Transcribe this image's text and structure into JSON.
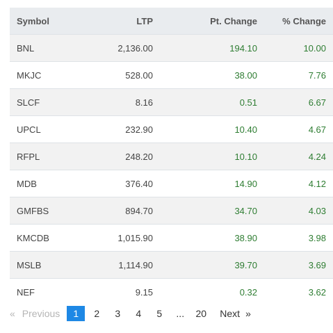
{
  "table": {
    "headers": {
      "symbol": "Symbol",
      "ltp": "LTP",
      "pt_change": "Pt. Change",
      "pct_change": "% Change"
    },
    "rows": [
      {
        "symbol": "BNL",
        "ltp": "2,136.00",
        "pt_change": "194.10",
        "pct_change": "10.00"
      },
      {
        "symbol": "MKJC",
        "ltp": "528.00",
        "pt_change": "38.00",
        "pct_change": "7.76"
      },
      {
        "symbol": "SLCF",
        "ltp": "8.16",
        "pt_change": "0.51",
        "pct_change": "6.67"
      },
      {
        "symbol": "UPCL",
        "ltp": "232.90",
        "pt_change": "10.40",
        "pct_change": "4.67"
      },
      {
        "symbol": "RFPL",
        "ltp": "248.20",
        "pt_change": "10.10",
        "pct_change": "4.24"
      },
      {
        "symbol": "MDB",
        "ltp": "376.40",
        "pt_change": "14.90",
        "pct_change": "4.12"
      },
      {
        "symbol": "GMFBS",
        "ltp": "894.70",
        "pt_change": "34.70",
        "pct_change": "4.03"
      },
      {
        "symbol": "KMCDB",
        "ltp": "1,015.90",
        "pt_change": "38.90",
        "pct_change": "3.98"
      },
      {
        "symbol": "MSLB",
        "ltp": "1,114.90",
        "pt_change": "39.70",
        "pct_change": "3.69"
      },
      {
        "symbol": "NEF",
        "ltp": "9.15",
        "pt_change": "0.32",
        "pct_change": "3.62"
      }
    ]
  },
  "pagination": {
    "prev_arrow": "«",
    "prev_label": "Previous",
    "current": "1",
    "pages": [
      "2",
      "3",
      "4",
      "5"
    ],
    "ellipsis": "...",
    "last": "20",
    "next_label": "Next",
    "next_arrow": "»"
  },
  "colors": {
    "positive": "#2e7d32",
    "accent": "#1e88e5",
    "header_bg": "#e9ecef",
    "stripe_bg": "#f2f2f2"
  }
}
